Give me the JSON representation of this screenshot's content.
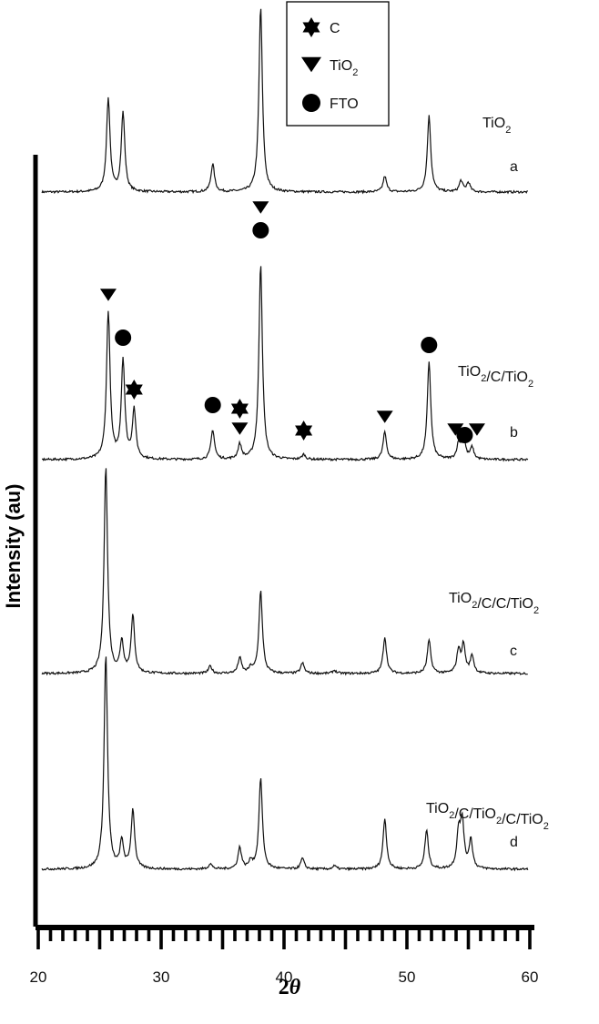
{
  "chart_data": {
    "type": "line",
    "xlabel": "2θ",
    "xlabel_main": "2",
    "xlabel_symbol": "θ",
    "ylabel": "Intensity (au)",
    "xlim": [
      20,
      60
    ],
    "xticks": [
      20,
      30,
      40,
      50,
      60
    ],
    "grid": false,
    "legend_position": "top-center",
    "legend": [
      {
        "symbol": "star",
        "label": "C"
      },
      {
        "symbol": "triangle-down",
        "label": "TiO",
        "sub": "2"
      },
      {
        "symbol": "circle",
        "label": "FTO"
      }
    ],
    "peak_positions": [
      25.7,
      26.9,
      27.8,
      34.2,
      36.4,
      38.1,
      41.6,
      48.2,
      51.8,
      54.2,
      54.6,
      55.3
    ],
    "series": [
      {
        "letter": "a",
        "label_parts": [
          [
            "TiO",
            "2"
          ]
        ],
        "baseline": 0,
        "peaks": [
          [
            25.7,
            1.0
          ],
          [
            26.9,
            0.85
          ],
          [
            34.2,
            0.3
          ],
          [
            38.1,
            2.0
          ],
          [
            48.2,
            0.17
          ],
          [
            51.8,
            0.82
          ],
          [
            54.4,
            0.12
          ],
          [
            55.0,
            0.1
          ]
        ]
      },
      {
        "letter": "b",
        "label_parts": [
          [
            "TiO",
            "2"
          ],
          [
            "/C/TiO",
            "2"
          ]
        ],
        "baseline": 0,
        "peaks": [
          [
            25.7,
            1.5
          ],
          [
            26.9,
            1.0
          ],
          [
            27.8,
            0.5
          ],
          [
            34.2,
            0.3
          ],
          [
            36.4,
            0.15
          ],
          [
            38.1,
            2.0
          ],
          [
            41.6,
            0.05
          ],
          [
            48.2,
            0.28
          ],
          [
            51.8,
            1.0
          ],
          [
            54.2,
            0.15
          ],
          [
            54.6,
            0.25
          ],
          [
            55.3,
            0.12
          ]
        ]
      },
      {
        "letter": "c",
        "label_parts": [
          [
            "TiO",
            "2"
          ],
          [
            "/C/C/TiO",
            "2"
          ]
        ],
        "baseline": 0,
        "peaks": [
          [
            25.5,
            2.0
          ],
          [
            26.8,
            0.3
          ],
          [
            27.7,
            0.55
          ],
          [
            34.0,
            0.07
          ],
          [
            36.4,
            0.15
          ],
          [
            37.3,
            0.05
          ],
          [
            38.1,
            0.8
          ],
          [
            41.5,
            0.1
          ],
          [
            44.1,
            0.03
          ],
          [
            48.2,
            0.35
          ],
          [
            51.8,
            0.32
          ],
          [
            54.2,
            0.22
          ],
          [
            54.6,
            0.27
          ],
          [
            55.3,
            0.17
          ]
        ]
      },
      {
        "letter": "d",
        "label_parts": [
          [
            "TiO",
            "2"
          ],
          [
            "/C/TiO",
            "2"
          ],
          [
            "/C/TiO",
            "2"
          ]
        ],
        "baseline": 0,
        "peaks": [
          [
            25.5,
            2.0
          ],
          [
            26.8,
            0.25
          ],
          [
            27.7,
            0.55
          ],
          [
            34.0,
            0.05
          ],
          [
            36.4,
            0.2
          ],
          [
            37.3,
            0.07
          ],
          [
            38.1,
            0.85
          ],
          [
            41.5,
            0.1
          ],
          [
            44.1,
            0.03
          ],
          [
            48.2,
            0.47
          ],
          [
            51.6,
            0.36
          ],
          [
            54.2,
            0.33
          ],
          [
            54.5,
            0.43
          ],
          [
            55.2,
            0.27
          ]
        ]
      }
    ],
    "markers": [
      {
        "symbol": "triangle-down",
        "x": 38.1,
        "series": "a"
      },
      {
        "symbol": "circle",
        "x": 38.1,
        "series": "b"
      },
      {
        "symbol": "triangle-down",
        "x": 25.7,
        "series": "b"
      },
      {
        "symbol": "circle",
        "x": 26.9,
        "series": "b"
      },
      {
        "symbol": "star",
        "x": 27.8,
        "series": "b"
      },
      {
        "symbol": "circle",
        "x": 34.2,
        "series": "b"
      },
      {
        "symbol": "star",
        "x": 36.4,
        "series": "b"
      },
      {
        "symbol": "triangle-down",
        "x": 36.4,
        "series": "b"
      },
      {
        "symbol": "star",
        "x": 41.6,
        "series": "b"
      },
      {
        "symbol": "triangle-down",
        "x": 48.2,
        "series": "b"
      },
      {
        "symbol": "circle",
        "x": 51.8,
        "series": "b"
      },
      {
        "symbol": "circle",
        "x": 54.6,
        "series": "b"
      },
      {
        "symbol": "triangle-down",
        "x": 54.2,
        "series": "b"
      },
      {
        "symbol": "triangle-down",
        "x": 55.7,
        "series": "b"
      }
    ]
  }
}
